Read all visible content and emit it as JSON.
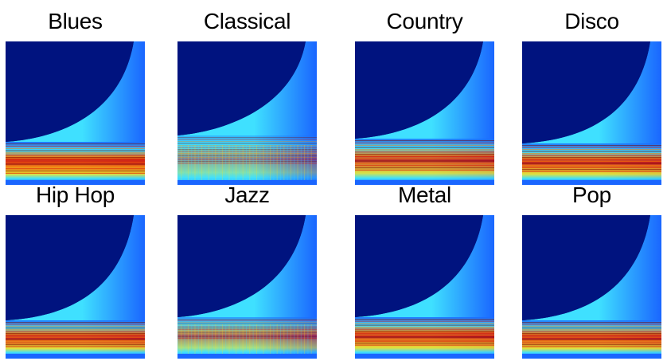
{
  "figure": {
    "panels": [
      {
        "title": "Blues"
      },
      {
        "title": "Classical"
      },
      {
        "title": "Country"
      },
      {
        "title": "Disco"
      },
      {
        "title": "Hip Hop"
      },
      {
        "title": "Jazz"
      },
      {
        "title": "Metal"
      },
      {
        "title": "Pop"
      }
    ],
    "colors": {
      "background_dark": "#00137f",
      "blue": "#1a66ff",
      "cyan": "#3fe0ff",
      "yellow": "#ffe21a",
      "orange": "#ff7a00",
      "red": "#d80000",
      "dark_red": "#7a0000"
    }
  }
}
